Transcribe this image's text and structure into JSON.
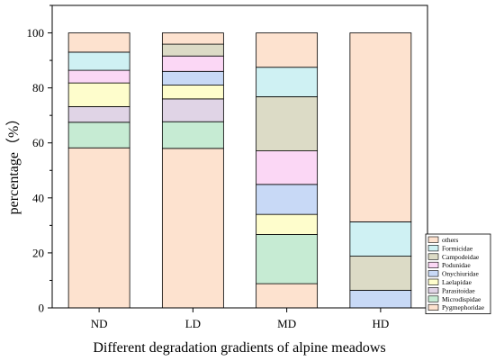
{
  "chart_data": {
    "type": "bar",
    "stacked": true,
    "xlabel": "Different degradation gradients of alpine meadows",
    "ylabel": "percentage（%）",
    "ylim": [
      0,
      110
    ],
    "yticks": [
      0,
      20,
      40,
      60,
      80,
      100
    ],
    "categories": [
      "ND",
      "LD",
      "MD",
      "HD"
    ],
    "legend_position": "bottom-right",
    "series": [
      {
        "name": "Pygmephoridae",
        "color": "#FDE2CF",
        "values": [
          58.2,
          58.0,
          8.8,
          0.0
        ]
      },
      {
        "name": "Microdispidae",
        "color": "#C6EBD3",
        "values": [
          9.3,
          9.7,
          17.9,
          0.0
        ]
      },
      {
        "name": "Parasitoidae",
        "color": "#E0D4E6",
        "values": [
          5.7,
          8.3,
          0.0,
          0.0
        ]
      },
      {
        "name": "Laelapidae",
        "color": "#FEFDCC",
        "values": [
          8.6,
          5.0,
          7.3,
          0.0
        ]
      },
      {
        "name": "Onychiuridae",
        "color": "#C8D9F6",
        "values": [
          0.0,
          5.0,
          10.9,
          6.4
        ]
      },
      {
        "name": "Podunidae",
        "color": "#FBD7F5",
        "values": [
          4.6,
          5.6,
          12.2,
          0.0
        ]
      },
      {
        "name": "Campodeidae",
        "color": "#DCDBC6",
        "values": [
          0.0,
          4.3,
          19.7,
          12.4
        ]
      },
      {
        "name": "Formicidae",
        "color": "#CFF1F3",
        "values": [
          6.6,
          0.0,
          10.7,
          12.5
        ]
      },
      {
        "name": "others",
        "color": "#FDE2CF",
        "values": [
          7.0,
          4.1,
          12.5,
          68.7
        ]
      }
    ]
  }
}
